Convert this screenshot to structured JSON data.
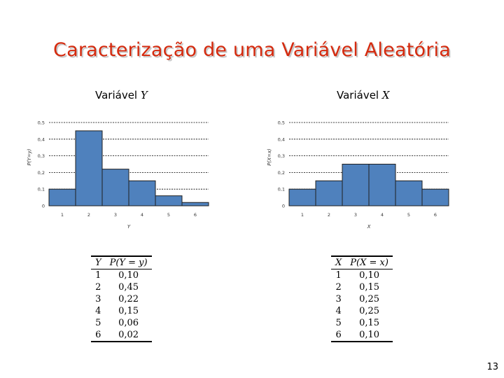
{
  "slide": {
    "title": "Caracterização de uma Variável Aleatória",
    "page_number": "13",
    "title_color": "#d52a0e"
  },
  "left": {
    "label_prefix": "Variável",
    "label_var": "Y",
    "table": {
      "headers": [
        "Y",
        "P(Y = y)"
      ],
      "rows": [
        [
          "1",
          "0,10"
        ],
        [
          "2",
          "0,45"
        ],
        [
          "3",
          "0,22"
        ],
        [
          "4",
          "0,15"
        ],
        [
          "5",
          "0,06"
        ],
        [
          "6",
          "0,02"
        ]
      ]
    }
  },
  "right": {
    "label_prefix": "Variável",
    "label_var": "X",
    "table": {
      "headers": [
        "X",
        "P(X = x)"
      ],
      "rows": [
        [
          "1",
          "0,10"
        ],
        [
          "2",
          "0,15"
        ],
        [
          "3",
          "0,25"
        ],
        [
          "4",
          "0,25"
        ],
        [
          "5",
          "0,15"
        ],
        [
          "6",
          "0,10"
        ]
      ]
    }
  },
  "chart_data": [
    {
      "type": "bar",
      "categories": [
        "1",
        "2",
        "3",
        "4",
        "5",
        "6"
      ],
      "values": [
        0.1,
        0.45,
        0.22,
        0.15,
        0.06,
        0.02
      ],
      "yticks": [
        "0",
        "0,1",
        "0,2",
        "0,3",
        "0,4",
        "0,5"
      ],
      "xlabel": "Y",
      "ylabel": "P(Y=y)",
      "ylim": [
        0,
        0.5
      ],
      "grid": true,
      "bar_color": "#4f81bd"
    },
    {
      "type": "bar",
      "categories": [
        "1",
        "2",
        "3",
        "4",
        "5",
        "6"
      ],
      "values": [
        0.1,
        0.15,
        0.25,
        0.25,
        0.15,
        0.1
      ],
      "yticks": [
        "0",
        "0,1",
        "0,2",
        "0,3",
        "0,4",
        "0,5"
      ],
      "xlabel": "X",
      "ylabel": "P(X=x)",
      "ylim": [
        0,
        0.5
      ],
      "grid": true,
      "bar_color": "#4f81bd"
    }
  ]
}
